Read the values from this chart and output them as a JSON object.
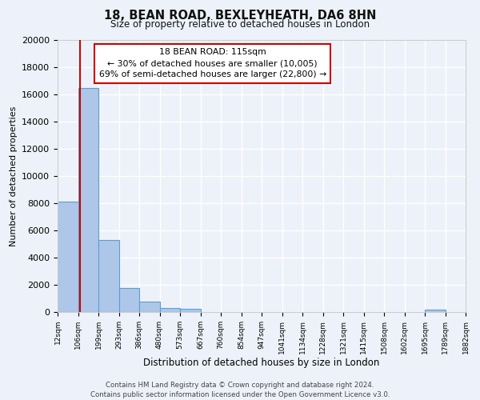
{
  "title": "18, BEAN ROAD, BEXLEYHEATH, DA6 8HN",
  "subtitle": "Size of property relative to detached houses in London",
  "xlabel": "Distribution of detached houses by size in London",
  "ylabel": "Number of detached properties",
  "bin_labels": [
    "12sqm",
    "106sqm",
    "199sqm",
    "293sqm",
    "386sqm",
    "480sqm",
    "573sqm",
    "667sqm",
    "760sqm",
    "854sqm",
    "947sqm",
    "1041sqm",
    "1134sqm",
    "1228sqm",
    "1321sqm",
    "1415sqm",
    "1508sqm",
    "1602sqm",
    "1695sqm",
    "1789sqm",
    "1882sqm"
  ],
  "bar_values": [
    8100,
    16500,
    5300,
    1750,
    750,
    300,
    250,
    0,
    0,
    0,
    0,
    0,
    0,
    0,
    0,
    0,
    0,
    0,
    150,
    0
  ],
  "bar_color": "#aec6e8",
  "bar_edge_color": "#5a9fd4",
  "background_color": "#edf2fa",
  "grid_color": "#ffffff",
  "ylim": [
    0,
    20000
  ],
  "yticks": [
    0,
    2000,
    4000,
    6000,
    8000,
    10000,
    12000,
    14000,
    16000,
    18000,
    20000
  ],
  "property_line_color": "#cc0000",
  "annotation_title": "18 BEAN ROAD: 115sqm",
  "annotation_line1": "← 30% of detached houses are smaller (10,005)",
  "annotation_line2": "69% of semi-detached houses are larger (22,800) →",
  "footer_line1": "Contains HM Land Registry data © Crown copyright and database right 2024.",
  "footer_line2": "Contains public sector information licensed under the Open Government Licence v3.0."
}
